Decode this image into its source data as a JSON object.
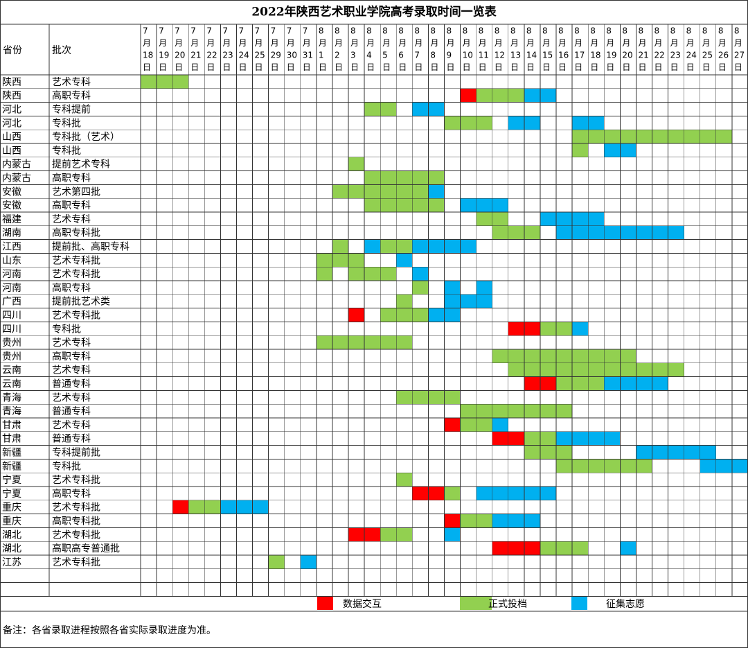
{
  "title": "2022年陕西艺术职业学院高考录取时间一览表",
  "headers": [
    "省份",
    "批次"
  ],
  "columns": [
    [
      "7",
      "月",
      "18",
      "日"
    ],
    [
      "7",
      "月",
      "19",
      "日"
    ],
    [
      "7",
      "月",
      "20",
      "日"
    ],
    [
      "7",
      "月",
      "21",
      "日"
    ],
    [
      "7",
      "月",
      "22",
      "日"
    ],
    [
      "7",
      "月",
      "23",
      "日"
    ],
    [
      "7",
      "月",
      "24",
      "日"
    ],
    [
      "7",
      "月",
      "25",
      "日"
    ],
    [
      "7",
      "月",
      "29",
      "日"
    ],
    [
      "7",
      "月",
      "30",
      "日"
    ],
    [
      "7",
      "月",
      "31",
      "日"
    ],
    [
      "8",
      "月",
      "1",
      "日"
    ],
    [
      "8",
      "月",
      "2",
      "日"
    ],
    [
      "8",
      "月",
      "3",
      "日"
    ],
    [
      "8",
      "月",
      "4",
      "日"
    ],
    [
      "8",
      "月",
      "5",
      "日"
    ],
    [
      "8",
      "月",
      "6",
      "日"
    ],
    [
      "8",
      "月",
      "7",
      "日"
    ],
    [
      "8",
      "月",
      "8",
      "日"
    ],
    [
      "8",
      "月",
      "9",
      "日"
    ],
    [
      "8",
      "月",
      "10",
      "日"
    ],
    [
      "8",
      "月",
      "11",
      "日"
    ],
    [
      "8",
      "月",
      "12",
      "日"
    ],
    [
      "8",
      "月",
      "13",
      "日"
    ],
    [
      "8",
      "月",
      "14",
      "日"
    ],
    [
      "8",
      "月",
      "15",
      "日"
    ],
    [
      "8",
      "月",
      "16",
      "日"
    ],
    [
      "8",
      "月",
      "17",
      "日"
    ],
    [
      "8",
      "月",
      "18",
      "日"
    ],
    [
      "8",
      "月",
      "19",
      "日"
    ],
    [
      "8",
      "月",
      "20",
      "日"
    ],
    [
      "8",
      "月",
      "21",
      "日"
    ],
    [
      "8",
      "月",
      "22",
      "日"
    ],
    [
      "8",
      "月",
      "23",
      "日"
    ],
    [
      "8",
      "月",
      "24",
      "日"
    ],
    [
      "8",
      "月",
      "25",
      "日"
    ],
    [
      "8",
      "月",
      "26",
      "日"
    ],
    [
      "8",
      "月",
      "27",
      "日"
    ]
  ],
  "legend": [
    {
      "code": "R",
      "label": "数据交互",
      "color": "#ff0000"
    },
    {
      "code": "G",
      "label": "正式投档",
      "color": "#92d050"
    },
    {
      "code": "B",
      "label": "征集志愿",
      "color": "#00b0f0"
    }
  ],
  "rows": [
    {
      "province": "陕西",
      "batch": "艺术专科",
      "cells": "GGG................................................"
    },
    {
      "province": "陕西",
      "batch": "高职专科",
      "cells": "....................RGGGBB................"
    },
    {
      "province": "河北",
      "batch": "专科提前",
      "cells": "..............GG.BB......................"
    },
    {
      "province": "河北",
      "batch": "专科批",
      "cells": "...................GGG.BB..BB..........."
    },
    {
      "province": "山西",
      "batch": "专科批（艺术）",
      "cells": "...........................GGGGGGGGGG."
    },
    {
      "province": "山西",
      "batch": "专科批",
      "cells": "...........................G.BB........"
    },
    {
      "province": "内蒙古",
      "batch": "提前艺术专科",
      "cells": ".............G........................"
    },
    {
      "province": "内蒙古",
      "batch": "高职专科",
      "cells": "..............GGGGG....................."
    },
    {
      "province": "安徽",
      "batch": "艺术第四批",
      "cells": "............GGGGGGB....................."
    },
    {
      "province": "安徽",
      "batch": "高职专科",
      "cells": "..............GGGGG.BBB................."
    },
    {
      "province": "福建",
      "batch": "艺术专科",
      "cells": ".....................GG..BBBB..........."
    },
    {
      "province": "湖南",
      "batch": "高职专科批",
      "cells": "......................GGG.BBBBBBBB....."
    },
    {
      "province": "江西",
      "batch": "提前批、高职专科",
      "cells": "............G.BGGBBBB..................."
    },
    {
      "province": "山东",
      "batch": "艺术专科批",
      "cells": "...........GGG..B......................"
    },
    {
      "province": "河南",
      "batch": "艺术专科批",
      "cells": "...........G.GGG.B....................."
    },
    {
      "province": "河南",
      "batch": "高职专科",
      "cells": ".................G.B.B................"
    },
    {
      "province": "广西",
      "batch": "提前批艺术类",
      "cells": "................G..BBB................"
    },
    {
      "province": "四川",
      "batch": "艺术专科批",
      "cells": ".............R.GGGBB.................."
    },
    {
      "province": "四川",
      "batch": "专科批",
      "cells": ".......................RRGGB.........."
    },
    {
      "province": "贵州",
      "batch": "艺术专科",
      "cells": "...........GGGGGG....................."
    },
    {
      "province": "贵州",
      "batch": "高职专科",
      "cells": "......................GGGGGGGGG......."
    },
    {
      "province": "云南",
      "batch": "艺术专科",
      "cells": ".......................GGGGGGGGGGG....."
    },
    {
      "province": "云南",
      "batch": "普通专科",
      "cells": "........................RRGGGBBBB....."
    },
    {
      "province": "青海",
      "batch": "艺术专科",
      "cells": "................GGGG.................."
    },
    {
      "province": "青海",
      "batch": "普通专科",
      "cells": "....................GGGGGGG..........."
    },
    {
      "province": "甘肃",
      "batch": "艺术专科",
      "cells": "...................RGGB..............."
    },
    {
      "province": "甘肃",
      "batch": "普通专科",
      "cells": "......................RRGGBBBB........"
    },
    {
      "province": "新疆",
      "batch": "专科提前批",
      "cells": "........................GGG....BBBBB.."
    },
    {
      "province": "新疆",
      "batch": "专科批",
      "cells": "..........................GGGGGG...BBB"
    },
    {
      "province": "宁夏",
      "batch": "艺术专科批",
      "cells": "................G....................."
    },
    {
      "province": "宁夏",
      "batch": "高职专科",
      "cells": ".................RRG.BBBBB............"
    },
    {
      "province": "重庆",
      "batch": "艺术专科批",
      "cells": "..RGGBBB.............................."
    },
    {
      "province": "重庆",
      "batch": "高职专科批",
      "cells": "...................RGGBBB............."
    },
    {
      "province": "湖北",
      "batch": "艺术专科批",
      "cells": ".............RRGG..B.................."
    },
    {
      "province": "湖北",
      "batch": "高职高专普通批",
      "cells": "......................RRRGGG..B......."
    },
    {
      "province": "江苏",
      "batch": "艺术专科批",
      "cells": "........G.B..........................."
    }
  ],
  "note": "备注：各省录取进程按照各省实际录取进度为准。"
}
